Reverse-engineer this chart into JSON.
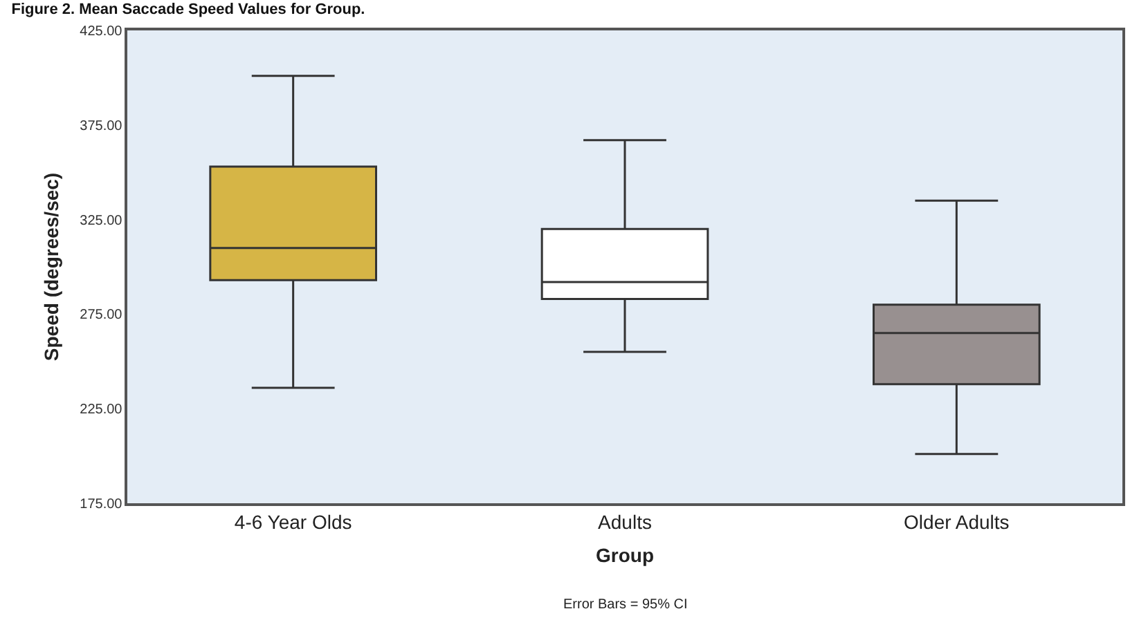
{
  "chart_data": {
    "type": "box",
    "title": "Figure 2. Mean Saccade Speed Values for Group.",
    "xlabel": "Group",
    "ylabel": "Speed (degrees/sec)",
    "annotations": [
      "Error Bars = 95% CI"
    ],
    "categories": [
      "4-6 Year Olds",
      "Adults",
      "Older Adults"
    ],
    "colors": [
      "#d6b546",
      "#ffffff",
      "#989090"
    ],
    "boxes": [
      {
        "low": 236,
        "q1": 293,
        "median": 310,
        "q3": 353,
        "high": 401
      },
      {
        "low": 255,
        "q1": 283,
        "median": 292,
        "q3": 320,
        "high": 367
      },
      {
        "low": 201,
        "q1": 238,
        "median": 265,
        "q3": 280,
        "high": 335
      }
    ],
    "ylim": [
      175,
      425
    ],
    "yticks": [
      {
        "value": 175,
        "label": "175.00"
      },
      {
        "value": 225,
        "label": "225.00"
      },
      {
        "value": 275,
        "label": "275.00"
      },
      {
        "value": 325,
        "label": "325.00"
      },
      {
        "value": 375,
        "label": "375.00"
      },
      {
        "value": 425,
        "label": "425.00"
      }
    ],
    "grid": false
  }
}
